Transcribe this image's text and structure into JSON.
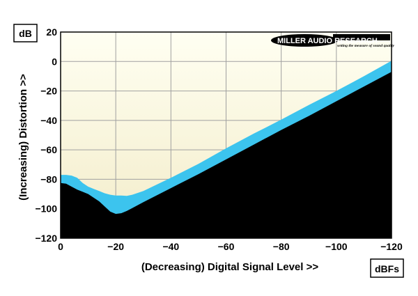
{
  "chart_data": {
    "type": "area",
    "unit_y": "dB",
    "unit_x": "dBFs",
    "xlabel": "(Decreasing) Digital Signal Level >>",
    "ylabel": "(Increasing) Distortion >>",
    "xlim": [
      0,
      -120
    ],
    "ylim": [
      -120,
      20
    ],
    "x_ticks": [
      0,
      -20,
      -40,
      -60,
      -80,
      -100,
      -120
    ],
    "y_ticks": [
      20,
      0,
      -20,
      -40,
      -60,
      -80,
      -100,
      -120
    ],
    "grid": true,
    "logo": {
      "name": "MILLER AUDIO RESEARCH",
      "tagline": "setting the measure of sound quality"
    },
    "colors": {
      "background_top": "#fffff2",
      "background_bottom": "#f3ecc9",
      "band": "#3cc4ee",
      "floor": "#000000",
      "grid": "#a0a0a0"
    },
    "series": [
      {
        "x": [
          0,
          -2,
          -4,
          -6,
          -8,
          -10,
          -12,
          -14,
          -16,
          -18,
          -20,
          -22,
          -24,
          -26,
          -30,
          -40,
          -50,
          -60,
          -70,
          -80,
          -90,
          -100,
          -110,
          -120
        ],
        "upper": [
          -77,
          -77,
          -77.5,
          -79,
          -82.5,
          -85,
          -86.5,
          -88,
          -89.5,
          -90.5,
          -91,
          -91,
          -91.3,
          -90.5,
          -88,
          -79,
          -69.5,
          -59,
          -49,
          -39.5,
          -29.5,
          -20,
          -10,
          0.5
        ],
        "lower": [
          -82.5,
          -83,
          -85,
          -87,
          -88.5,
          -90,
          -92.5,
          -95,
          -98.5,
          -102,
          -103.5,
          -103,
          -101.5,
          -99.5,
          -95.5,
          -86,
          -76.5,
          -66.5,
          -56.5,
          -46.5,
          -37,
          -27,
          -17,
          -7
        ]
      }
    ]
  }
}
